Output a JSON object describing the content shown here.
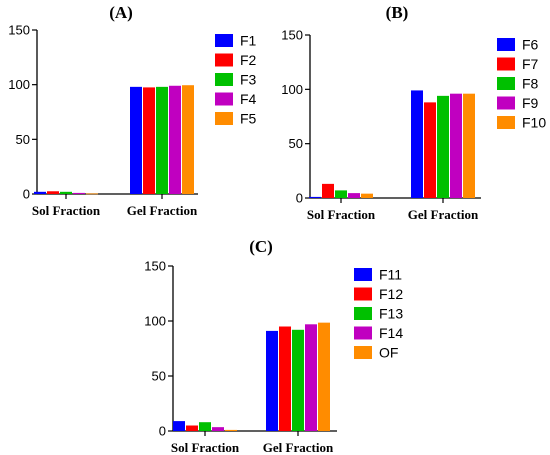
{
  "chart_data": [
    {
      "type": "bar",
      "title": "(A)",
      "categories": [
        "Sol Fraction",
        "Gel Fraction"
      ],
      "ylim": [
        0,
        150
      ],
      "yticks": [
        0,
        50,
        100,
        150
      ],
      "legend_position": "right",
      "series": [
        {
          "name": "F1",
          "color": "#0000FF",
          "values": [
            2,
            98
          ]
        },
        {
          "name": "F2",
          "color": "#FF0000",
          "values": [
            2.5,
            97.5
          ]
        },
        {
          "name": "F3",
          "color": "#00C000",
          "values": [
            2,
            98
          ]
        },
        {
          "name": "F4",
          "color": "#C000C0",
          "values": [
            1,
            99
          ]
        },
        {
          "name": "F5",
          "color": "#FF8C00",
          "values": [
            0.5,
            99.5
          ]
        }
      ]
    },
    {
      "type": "bar",
      "title": "(B)",
      "categories": [
        "Sol Fraction",
        "Gel Fraction"
      ],
      "ylim": [
        0,
        150
      ],
      "yticks": [
        0,
        50,
        100,
        150
      ],
      "legend_position": "right",
      "series": [
        {
          "name": "F6",
          "color": "#0000FF",
          "values": [
            1,
            99
          ]
        },
        {
          "name": "F7",
          "color": "#FF0000",
          "values": [
            13,
            88
          ]
        },
        {
          "name": "F8",
          "color": "#00C000",
          "values": [
            7,
            94
          ]
        },
        {
          "name": "F9",
          "color": "#C000C0",
          "values": [
            4.5,
            96
          ]
        },
        {
          "name": "F10",
          "color": "#FF8C00",
          "values": [
            4,
            96
          ]
        }
      ]
    },
    {
      "type": "bar",
      "title": "(C)",
      "categories": [
        "Sol Fraction",
        "Gel Fraction"
      ],
      "ylim": [
        0,
        150
      ],
      "yticks": [
        0,
        50,
        100,
        150
      ],
      "legend_position": "right",
      "series": [
        {
          "name": "F11",
          "color": "#0000FF",
          "values": [
            9,
            91
          ]
        },
        {
          "name": "F12",
          "color": "#FF0000",
          "values": [
            5,
            95
          ]
        },
        {
          "name": "F13",
          "color": "#00C000",
          "values": [
            8,
            92
          ]
        },
        {
          "name": "F14",
          "color": "#C000C0",
          "values": [
            3.5,
            97
          ]
        },
        {
          "name": "OF",
          "color": "#FF8C00",
          "values": [
            1,
            98.5
          ]
        }
      ]
    }
  ]
}
